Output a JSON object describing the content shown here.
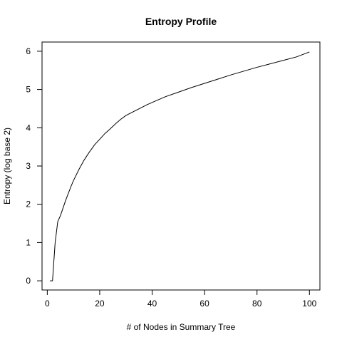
{
  "chart_data": {
    "type": "line",
    "title": "Entropy Profile",
    "xlabel": "# of Nodes in Summary Tree",
    "ylabel": "Entropy (log base 2)",
    "xlim": [
      -2,
      104
    ],
    "ylim": [
      -0.24,
      6.24
    ],
    "x_ticks": [
      0,
      20,
      40,
      60,
      80,
      100
    ],
    "y_ticks": [
      0,
      1,
      2,
      3,
      4,
      5,
      6
    ],
    "grid": false,
    "legend": "none",
    "line_color": "#000000",
    "series": [
      {
        "x": [
          1,
          2,
          3,
          4,
          5,
          6,
          7,
          8,
          9,
          10,
          12,
          14,
          16,
          18,
          20,
          22,
          24,
          26,
          28,
          30,
          32,
          34,
          36,
          38,
          40,
          45,
          50,
          55,
          60,
          65,
          70,
          75,
          80,
          85,
          90,
          95,
          100
        ],
        "y": [
          0,
          0,
          1.0,
          1.55,
          1.7,
          1.9,
          2.1,
          2.28,
          2.46,
          2.62,
          2.9,
          3.15,
          3.36,
          3.55,
          3.7,
          3.85,
          3.97,
          4.1,
          4.22,
          4.32,
          4.39,
          4.46,
          4.53,
          4.6,
          4.66,
          4.81,
          4.93,
          5.05,
          5.16,
          5.27,
          5.38,
          5.48,
          5.58,
          5.67,
          5.76,
          5.85,
          5.98
        ]
      }
    ]
  }
}
